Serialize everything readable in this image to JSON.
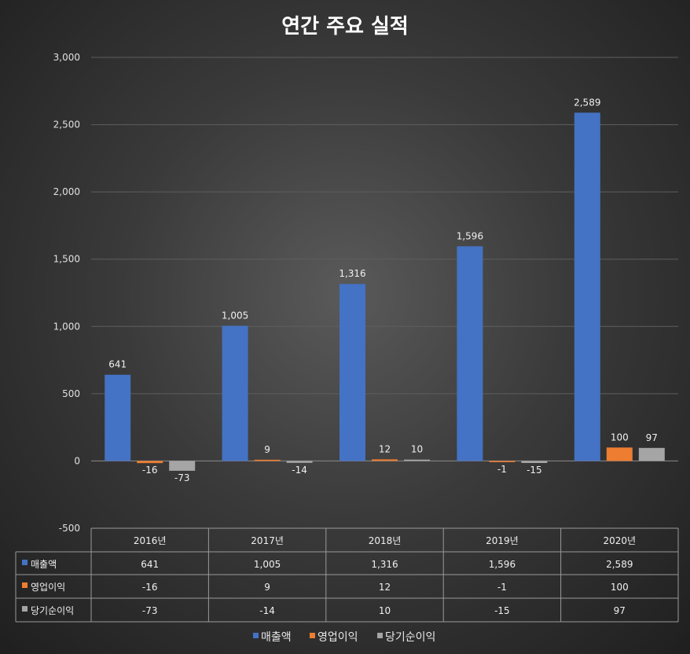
{
  "chart_data": {
    "type": "bar",
    "title": "연간 주요 실적",
    "categories": [
      "2016년",
      "2017년",
      "2018년",
      "2019년",
      "2020년"
    ],
    "series": [
      {
        "name": "매출액",
        "values": [
          641,
          1005,
          1316,
          1596,
          2589
        ],
        "color": "#4472c4"
      },
      {
        "name": "영업이익",
        "values": [
          -16,
          9,
          12,
          -1,
          100
        ],
        "color": "#ed7d31"
      },
      {
        "name": "당기순이익",
        "values": [
          -73,
          -14,
          10,
          -15,
          97
        ],
        "color": "#a5a5a5"
      }
    ],
    "data_labels": [
      [
        "641",
        "1,005",
        "1,316",
        "1,596",
        "2,589"
      ],
      [
        "-16",
        "9",
        "12",
        "-1",
        "100"
      ],
      [
        "-73",
        "-14",
        "10",
        "-15",
        "97"
      ]
    ],
    "ylim": [
      -500,
      3000
    ],
    "yticks": [
      -500,
      0,
      500,
      1000,
      1500,
      2000,
      2500,
      3000
    ],
    "ytick_labels": [
      "-500",
      "0",
      "500",
      "1,000",
      "1,500",
      "2,000",
      "2,500",
      "3,000"
    ],
    "grid": true,
    "legend_position": "bottom",
    "data_table": true
  }
}
